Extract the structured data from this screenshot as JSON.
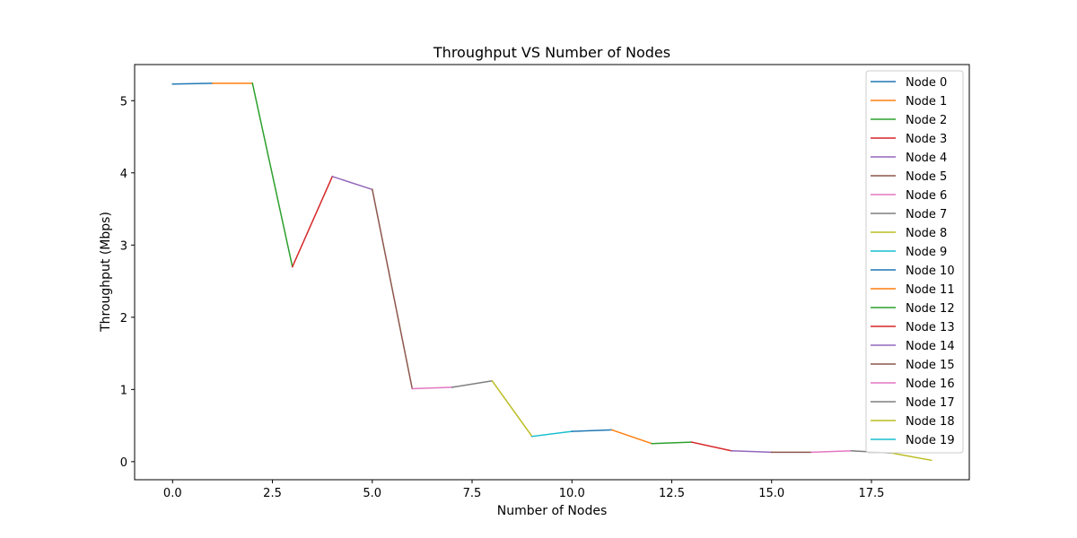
{
  "chart_data": {
    "type": "line",
    "title": "Throughput VS Number of Nodes",
    "xlabel": "Number of Nodes",
    "ylabel": "Throughput (Mbps)",
    "xlim": [
      -0.95,
      19.95
    ],
    "ylim": [
      -0.25,
      5.5
    ],
    "xticks": [
      0.0,
      2.5,
      5.0,
      7.5,
      10.0,
      12.5,
      15.0,
      17.5
    ],
    "xtick_labels": [
      "0.0",
      "2.5",
      "5.0",
      "7.5",
      "10.0",
      "12.5",
      "15.0",
      "17.5"
    ],
    "yticks": [
      0,
      1,
      2,
      3,
      4,
      5
    ],
    "ytick_labels": [
      "0",
      "1",
      "2",
      "3",
      "4",
      "5"
    ],
    "grid": false,
    "legend_position": "upper-right",
    "series": [
      {
        "name": "Node 0",
        "color": "#1f77b4",
        "x": [
          0,
          1
        ],
        "y": [
          5.23,
          5.24
        ]
      },
      {
        "name": "Node 1",
        "color": "#ff7f0e",
        "x": [
          1,
          2
        ],
        "y": [
          5.24,
          5.24
        ]
      },
      {
        "name": "Node 2",
        "color": "#2ca02c",
        "x": [
          2,
          3
        ],
        "y": [
          5.24,
          2.7
        ]
      },
      {
        "name": "Node 3",
        "color": "#d62728",
        "x": [
          3,
          4
        ],
        "y": [
          2.7,
          3.95
        ]
      },
      {
        "name": "Node 4",
        "color": "#9467bd",
        "x": [
          4,
          5
        ],
        "y": [
          3.95,
          3.77
        ]
      },
      {
        "name": "Node 5",
        "color": "#8c564b",
        "x": [
          5,
          6
        ],
        "y": [
          3.77,
          1.01
        ]
      },
      {
        "name": "Node 6",
        "color": "#e377c2",
        "x": [
          6,
          7
        ],
        "y": [
          1.01,
          1.03
        ]
      },
      {
        "name": "Node 7",
        "color": "#7f7f7f",
        "x": [
          7,
          8
        ],
        "y": [
          1.03,
          1.12
        ]
      },
      {
        "name": "Node 8",
        "color": "#bcbd22",
        "x": [
          8,
          9
        ],
        "y": [
          1.12,
          0.35
        ]
      },
      {
        "name": "Node 9",
        "color": "#17becf",
        "x": [
          9,
          10
        ],
        "y": [
          0.35,
          0.42
        ]
      },
      {
        "name": "Node 10",
        "color": "#1f77b4",
        "x": [
          10,
          11
        ],
        "y": [
          0.42,
          0.44
        ]
      },
      {
        "name": "Node 11",
        "color": "#ff7f0e",
        "x": [
          11,
          12
        ],
        "y": [
          0.44,
          0.25
        ]
      },
      {
        "name": "Node 12",
        "color": "#2ca02c",
        "x": [
          12,
          13
        ],
        "y": [
          0.25,
          0.27
        ]
      },
      {
        "name": "Node 13",
        "color": "#d62728",
        "x": [
          13,
          14
        ],
        "y": [
          0.27,
          0.15
        ]
      },
      {
        "name": "Node 14",
        "color": "#9467bd",
        "x": [
          14,
          15
        ],
        "y": [
          0.15,
          0.13
        ]
      },
      {
        "name": "Node 15",
        "color": "#8c564b",
        "x": [
          15,
          16
        ],
        "y": [
          0.13,
          0.13
        ]
      },
      {
        "name": "Node 16",
        "color": "#e377c2",
        "x": [
          16,
          17
        ],
        "y": [
          0.13,
          0.15
        ]
      },
      {
        "name": "Node 17",
        "color": "#7f7f7f",
        "x": [
          17,
          18
        ],
        "y": [
          0.15,
          0.12
        ]
      },
      {
        "name": "Node 18",
        "color": "#bcbd22",
        "x": [
          18,
          19
        ],
        "y": [
          0.12,
          0.02
        ]
      },
      {
        "name": "Node 19",
        "color": "#17becf",
        "x": [
          19
        ],
        "y": [
          0.02
        ]
      }
    ]
  }
}
